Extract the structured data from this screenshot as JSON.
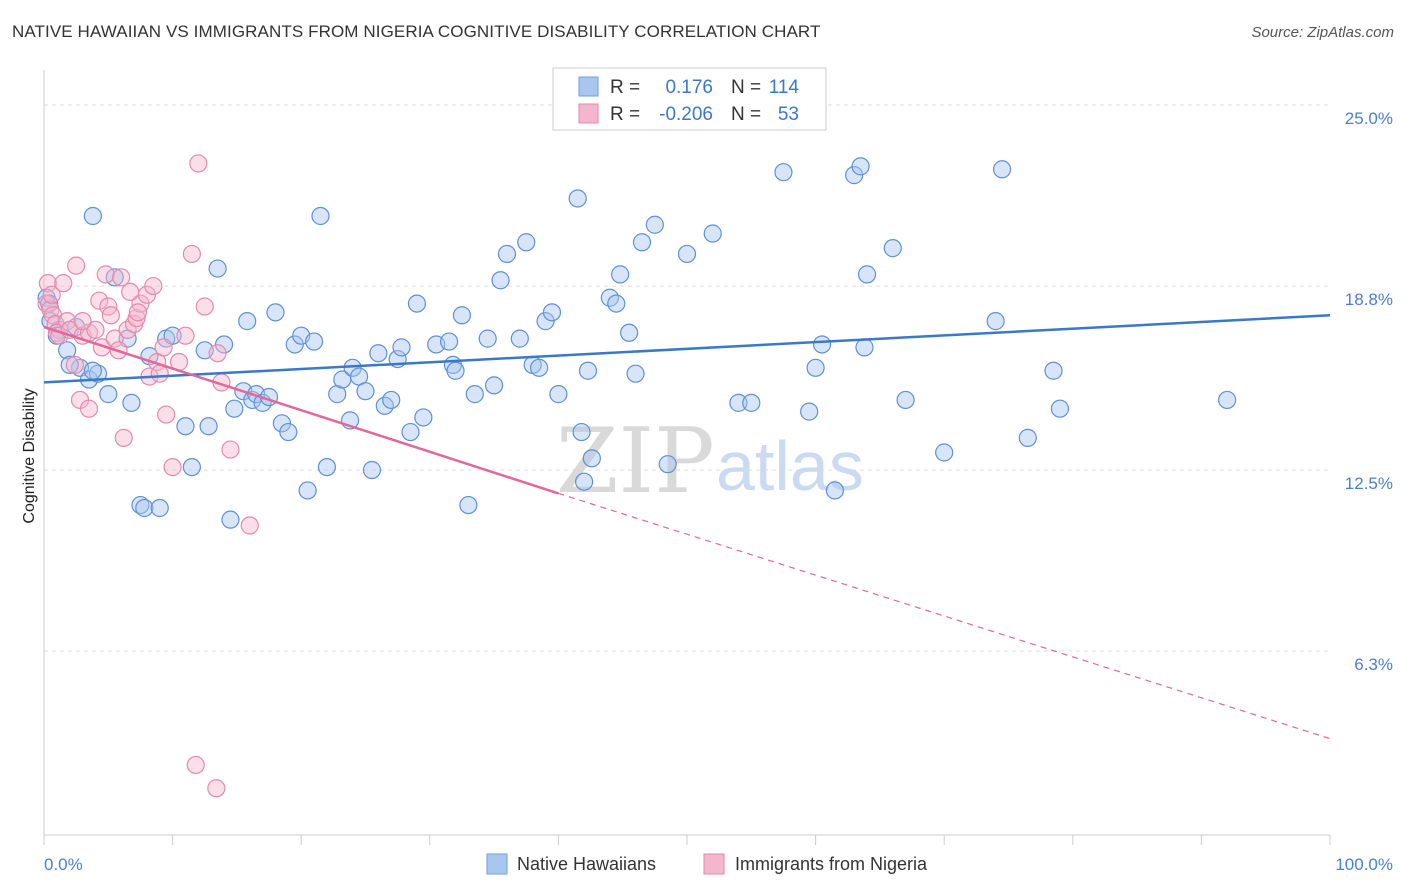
{
  "title": "NATIVE HAWAIIAN VS IMMIGRANTS FROM NIGERIA COGNITIVE DISABILITY CORRELATION CHART",
  "source": "Source: ZipAtlas.com",
  "watermark": {
    "zip": "ZIP",
    "atlas": "atlas"
  },
  "colors": {
    "blue": "#3a78c9",
    "blue_fill": "#a9c6ef",
    "pink": "#e2679a",
    "pink_fill": "#f4b6cc",
    "axis": "#cccccc",
    "grid": "#dddddd",
    "label": "#4a7fd6"
  },
  "legend": {
    "rows": [
      {
        "r_label": "R =",
        "r_value": "0.176",
        "n_label": "N =",
        "n_value": "114"
      },
      {
        "r_label": "R =",
        "r_value": "-0.206",
        "n_label": "N =",
        "n_value": "53"
      }
    ]
  },
  "chart_data": {
    "type": "scatter",
    "xlabel": "",
    "ylabel": "Cognitive Disability",
    "xlim": [
      0,
      100
    ],
    "ylim": [
      0,
      26.2
    ],
    "x_ticks": [
      "0.0%",
      "100.0%"
    ],
    "y_ticks": [
      {
        "value": 6.3,
        "label": "6.3%"
      },
      {
        "value": 12.5,
        "label": "12.5%"
      },
      {
        "value": 18.8,
        "label": "18.8%"
      },
      {
        "value": 25.0,
        "label": "25.0%"
      }
    ],
    "legend_position": "bottom",
    "series": [
      {
        "name": "Native Hawaiians",
        "trend": {
          "x0": 0,
          "y0": 15.5,
          "x1": 100,
          "y1": 17.8
        },
        "points": [
          [
            0.2,
            18.4
          ],
          [
            0.5,
            17.6
          ],
          [
            1.2,
            17.3
          ],
          [
            1.8,
            16.6
          ],
          [
            2.5,
            17.4
          ],
          [
            2.8,
            16.0
          ],
          [
            3.5,
            15.6
          ],
          [
            4.2,
            15.8
          ],
          [
            3.8,
            15.9
          ],
          [
            5.0,
            15.1
          ],
          [
            5.5,
            19.1
          ],
          [
            3.8,
            21.2
          ],
          [
            6.5,
            17.0
          ],
          [
            6.8,
            14.8
          ],
          [
            8.2,
            16.4
          ],
          [
            7.5,
            11.3
          ],
          [
            7.8,
            11.2
          ],
          [
            9.0,
            11.2
          ],
          [
            9.5,
            17.0
          ],
          [
            10.0,
            17.1
          ],
          [
            11.0,
            14.0
          ],
          [
            11.5,
            12.6
          ],
          [
            12.5,
            16.6
          ],
          [
            12.8,
            14.0
          ],
          [
            13.5,
            19.4
          ],
          [
            14.0,
            16.8
          ],
          [
            14.5,
            10.8
          ],
          [
            14.8,
            14.6
          ],
          [
            15.5,
            15.2
          ],
          [
            15.8,
            17.6
          ],
          [
            16.2,
            14.9
          ],
          [
            16.5,
            15.1
          ],
          [
            17.0,
            14.8
          ],
          [
            17.5,
            15.0
          ],
          [
            18.0,
            17.9
          ],
          [
            18.5,
            14.1
          ],
          [
            19.0,
            13.8
          ],
          [
            19.5,
            16.8
          ],
          [
            20.0,
            17.1
          ],
          [
            20.5,
            11.8
          ],
          [
            21.0,
            16.9
          ],
          [
            21.5,
            21.2
          ],
          [
            22.0,
            12.6
          ],
          [
            22.8,
            15.1
          ],
          [
            23.2,
            15.6
          ],
          [
            23.8,
            14.2
          ],
          [
            24.0,
            16.0
          ],
          [
            24.5,
            15.7
          ],
          [
            25.0,
            15.2
          ],
          [
            25.5,
            12.5
          ],
          [
            26.0,
            16.5
          ],
          [
            26.5,
            14.7
          ],
          [
            27.0,
            14.9
          ],
          [
            27.5,
            16.3
          ],
          [
            27.8,
            16.7
          ],
          [
            28.5,
            13.8
          ],
          [
            29.0,
            18.2
          ],
          [
            29.5,
            14.3
          ],
          [
            30.5,
            16.8
          ],
          [
            31.5,
            16.9
          ],
          [
            31.8,
            16.1
          ],
          [
            32.0,
            15.9
          ],
          [
            32.5,
            17.8
          ],
          [
            33.0,
            11.3
          ],
          [
            33.5,
            15.1
          ],
          [
            34.5,
            17.0
          ],
          [
            35.0,
            15.4
          ],
          [
            35.5,
            19.0
          ],
          [
            36.0,
            19.9
          ],
          [
            37.5,
            20.3
          ],
          [
            37.0,
            17.0
          ],
          [
            38.0,
            16.1
          ],
          [
            38.5,
            16.0
          ],
          [
            39.0,
            17.6
          ],
          [
            39.5,
            17.9
          ],
          [
            40.0,
            15.1
          ],
          [
            41.5,
            21.8
          ],
          [
            41.8,
            13.8
          ],
          [
            42.3,
            15.9
          ],
          [
            42.0,
            12.1
          ],
          [
            42.6,
            12.9
          ],
          [
            44.0,
            18.4
          ],
          [
            44.5,
            18.2
          ],
          [
            44.8,
            19.2
          ],
          [
            45.5,
            17.2
          ],
          [
            46.0,
            15.8
          ],
          [
            46.5,
            20.3
          ],
          [
            47.5,
            20.9
          ],
          [
            48.5,
            12.7
          ],
          [
            50.0,
            19.9
          ],
          [
            52.0,
            20.6
          ],
          [
            54.0,
            14.8
          ],
          [
            55.0,
            14.8
          ],
          [
            57.5,
            22.7
          ],
          [
            59.5,
            14.5
          ],
          [
            60.0,
            16.0
          ],
          [
            60.5,
            16.8
          ],
          [
            61.5,
            11.8
          ],
          [
            63.0,
            22.6
          ],
          [
            63.5,
            22.9
          ],
          [
            63.8,
            16.7
          ],
          [
            64.0,
            19.2
          ],
          [
            66.0,
            20.1
          ],
          [
            67.0,
            14.9
          ],
          [
            70.0,
            13.1
          ],
          [
            74.0,
            17.6
          ],
          [
            74.5,
            22.8
          ],
          [
            76.5,
            13.6
          ],
          [
            78.5,
            15.9
          ],
          [
            79.0,
            14.6
          ],
          [
            92.0,
            14.9
          ],
          [
            0.4,
            18.2
          ],
          [
            1.0,
            17.1
          ],
          [
            2.0,
            16.1
          ]
        ]
      },
      {
        "name": "Immigrants from Nigeria",
        "trend": {
          "x0": 0,
          "y0": 17.4,
          "x1": 40,
          "y1": 11.7
        },
        "trend_ext": {
          "x0": 40,
          "y0": 11.7,
          "x1": 100,
          "y1": 3.3
        },
        "points": [
          [
            0.2,
            18.2
          ],
          [
            0.3,
            18.9
          ],
          [
            0.5,
            18.0
          ],
          [
            0.6,
            18.5
          ],
          [
            0.7,
            17.8
          ],
          [
            0.9,
            17.5
          ],
          [
            1.0,
            17.2
          ],
          [
            1.2,
            17.1
          ],
          [
            1.5,
            18.9
          ],
          [
            1.8,
            17.6
          ],
          [
            2.0,
            17.3
          ],
          [
            2.4,
            16.1
          ],
          [
            2.5,
            19.5
          ],
          [
            2.8,
            14.9
          ],
          [
            3.0,
            17.1
          ],
          [
            3.5,
            14.6
          ],
          [
            3.5,
            17.2
          ],
          [
            4.0,
            17.3
          ],
          [
            4.3,
            18.3
          ],
          [
            4.5,
            16.7
          ],
          [
            4.8,
            19.2
          ],
          [
            5.0,
            18.1
          ],
          [
            5.2,
            17.8
          ],
          [
            5.5,
            17.0
          ],
          [
            5.8,
            16.6
          ],
          [
            6.0,
            19.1
          ],
          [
            6.2,
            13.6
          ],
          [
            6.5,
            17.3
          ],
          [
            7.0,
            17.5
          ],
          [
            7.2,
            17.7
          ],
          [
            7.5,
            18.2
          ],
          [
            8.0,
            18.5
          ],
          [
            8.2,
            15.7
          ],
          [
            8.5,
            18.8
          ],
          [
            8.8,
            16.2
          ],
          [
            9.0,
            15.8
          ],
          [
            9.3,
            16.7
          ],
          [
            9.5,
            14.4
          ],
          [
            10.0,
            12.6
          ],
          [
            10.5,
            16.2
          ],
          [
            11.0,
            17.1
          ],
          [
            11.5,
            19.9
          ],
          [
            12.0,
            23.0
          ],
          [
            12.5,
            18.1
          ],
          [
            13.5,
            16.5
          ],
          [
            13.8,
            15.5
          ],
          [
            14.5,
            13.2
          ],
          [
            16.0,
            10.6
          ],
          [
            3.0,
            17.6
          ],
          [
            6.7,
            18.6
          ],
          [
            7.3,
            17.9
          ],
          [
            11.8,
            2.4
          ],
          [
            13.4,
            1.6
          ]
        ]
      }
    ]
  },
  "bottom_legend": [
    {
      "label": "Native Hawaiians"
    },
    {
      "label": "Immigrants from Nigeria"
    }
  ]
}
